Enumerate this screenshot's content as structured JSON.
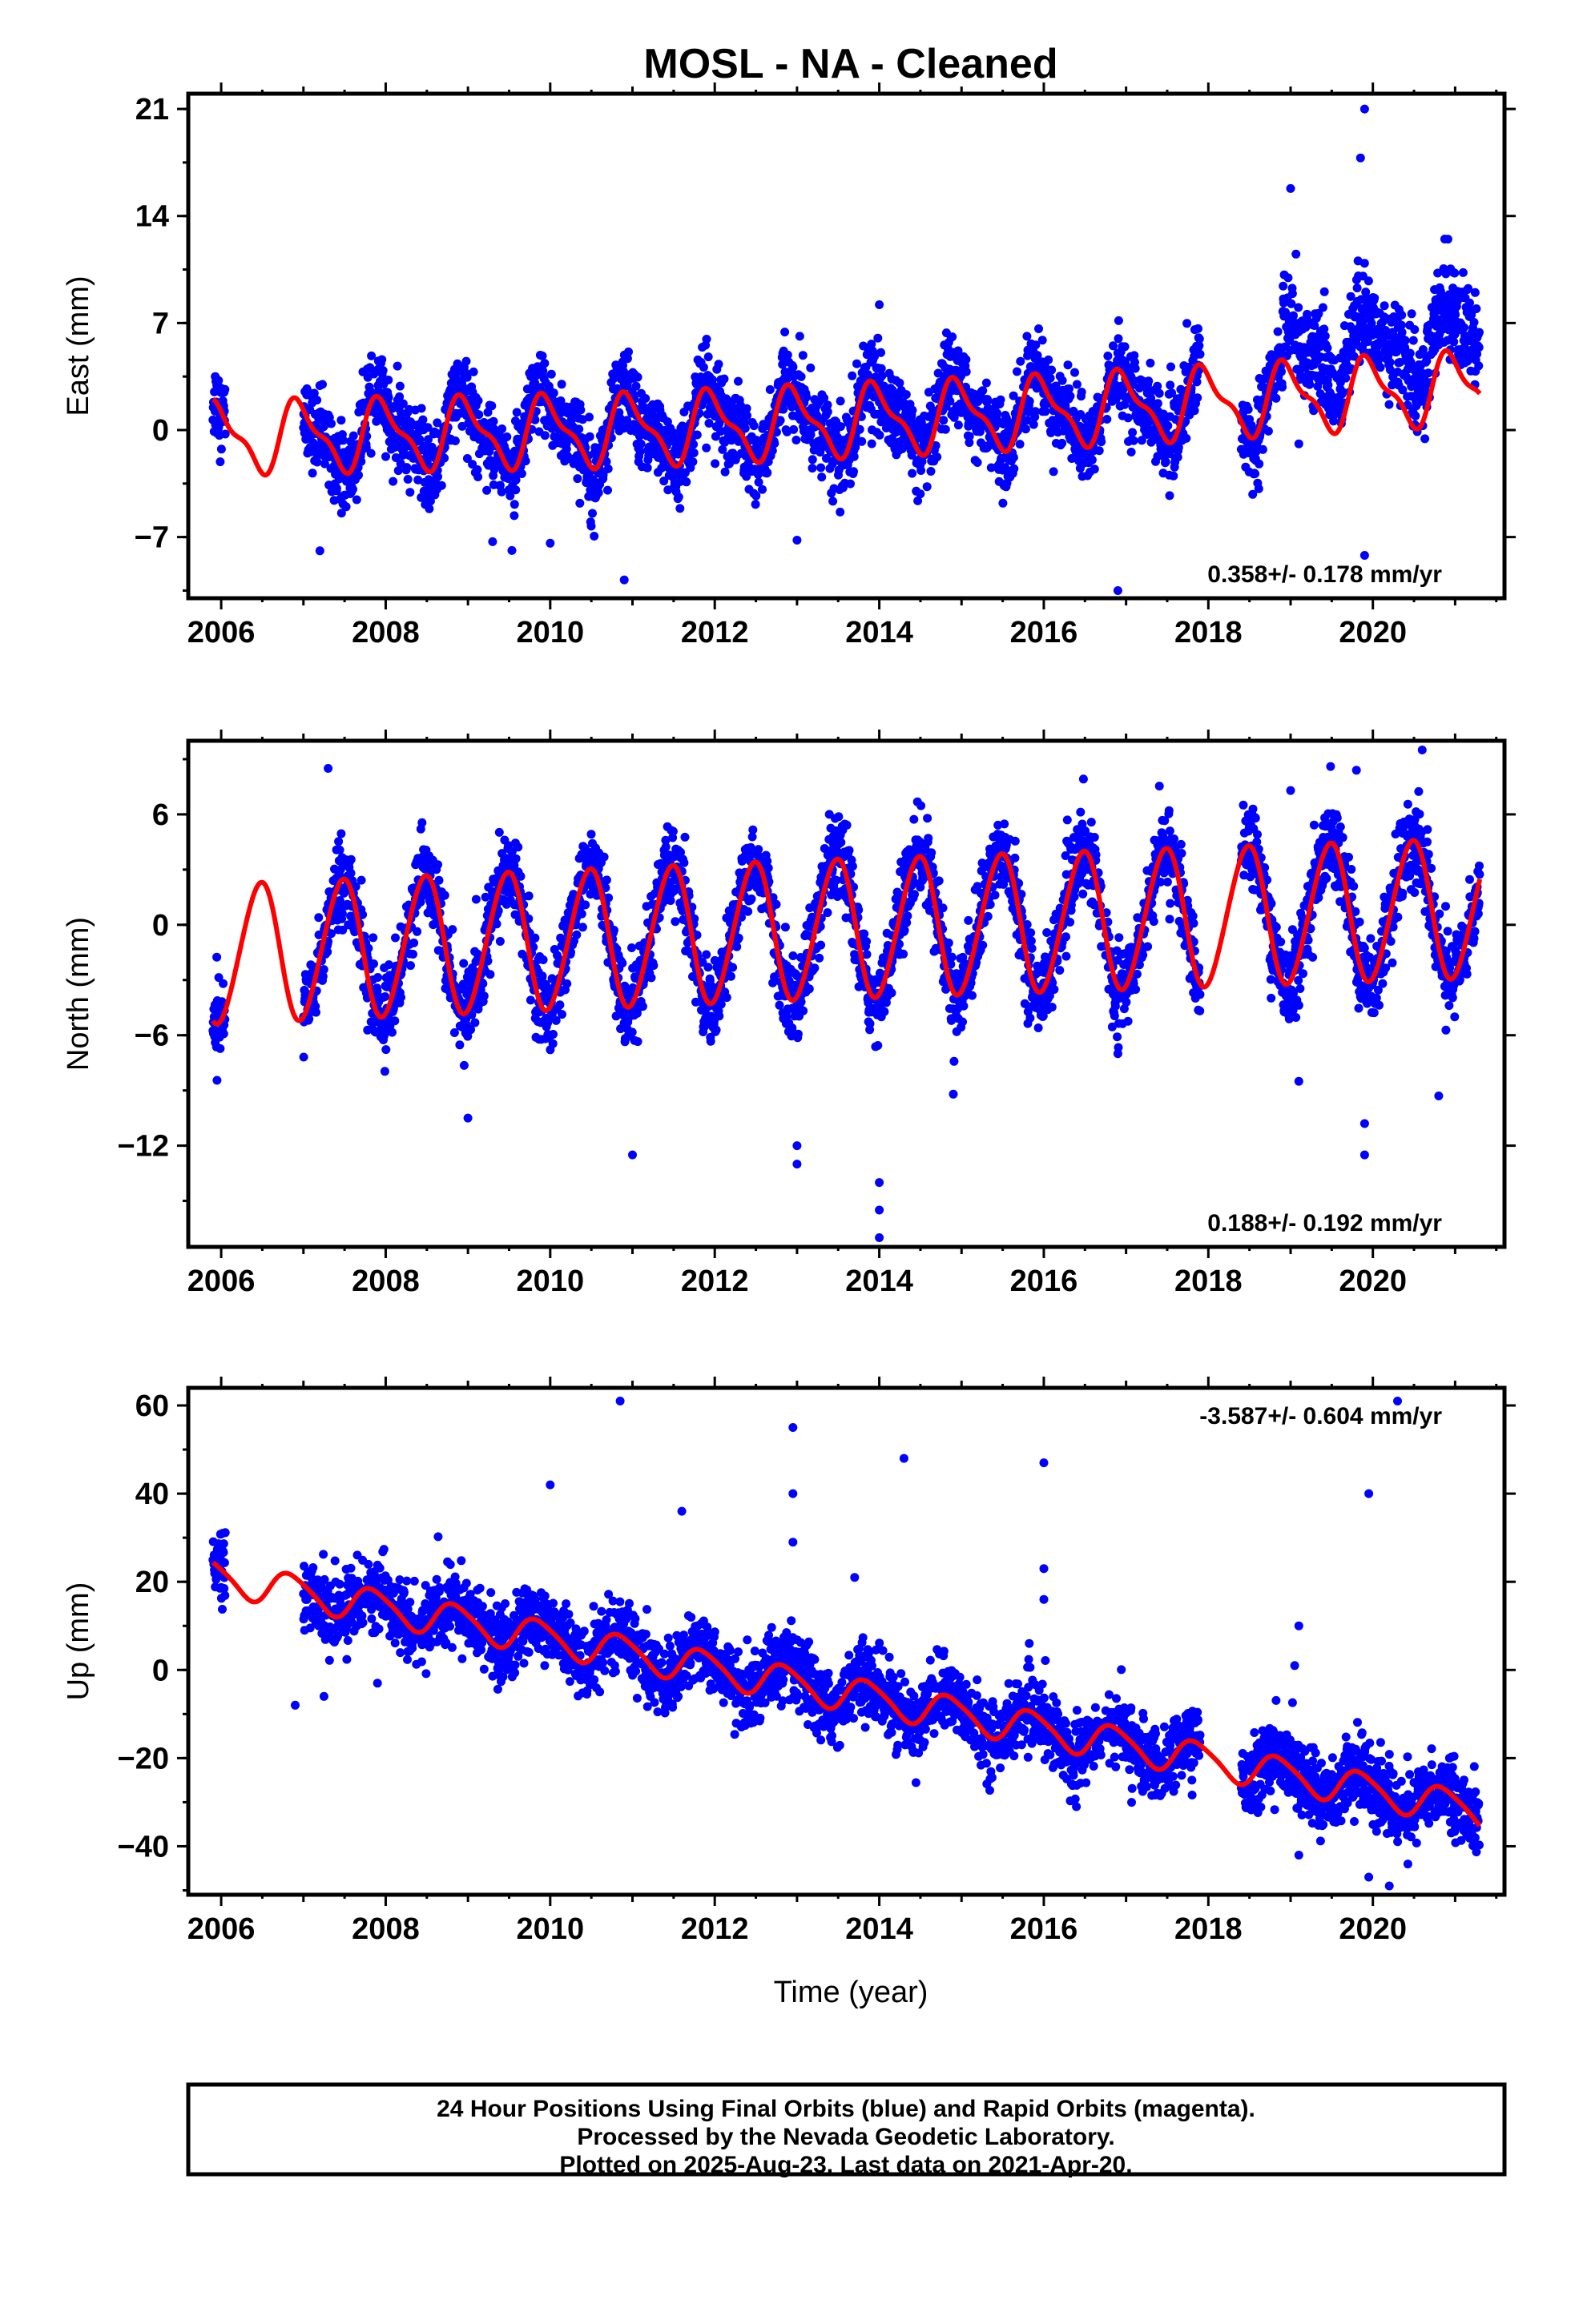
{
  "title": "MOSL  - NA - Cleaned",
  "x_axis_label": "Time (year)",
  "footer": {
    "lines": [
      "24 Hour Positions Using Final Orbits (blue) and Rapid Orbits (magenta).",
      "Processed by the Nevada Geodetic Laboratory.",
      "Plotted on 2025-Aug-23. Last data on 2021-Apr-20."
    ]
  },
  "colors": {
    "observations": "#0000ff",
    "model": "#ff0000",
    "frame": "#000000"
  },
  "chart_data": [
    {
      "type": "scatter",
      "component": "east",
      "ylabel": "East (mm)",
      "xlim": [
        2005.6,
        2021.6
      ],
      "ylim": [
        -11,
        22
      ],
      "xticks": [
        2006,
        2008,
        2010,
        2012,
        2014,
        2016,
        2018,
        2020
      ],
      "yticks": [
        -7,
        0,
        7,
        14,
        21
      ],
      "rate_text": "0.358+/- 0.178 mm/yr",
      "rate_position": "bottom-right",
      "data_spans": [
        [
          2005.9,
          2006.05
        ],
        [
          2007.0,
          2016.7
        ],
        [
          2016.75,
          2017.9
        ],
        [
          2018.4,
          2021.3
        ]
      ],
      "model": {
        "name": "model fit",
        "t_start": 2005.9,
        "t_end": 2021.3,
        "annual_sin": -0.5,
        "annual_cos": 2.05,
        "semiannual_sin": -0.7,
        "semiannual_cos": -0.35,
        "knots": [
          [
            2005.9,
            -0.5
          ],
          [
            2011.0,
            0.0
          ],
          [
            2016.0,
            1.2
          ],
          [
            2021.3,
            2.8
          ]
        ]
      },
      "noise_sd": 1.3,
      "offsets": [
        {
          "from": 2018.9,
          "to": 2021.3,
          "shift": 3.2
        }
      ],
      "outliers": [
        [
          2016.9,
          -10.5
        ],
        [
          2019.9,
          -8.2
        ],
        [
          2010.9,
          -9.8
        ],
        [
          2019.9,
          21.0
        ],
        [
          2019.0,
          15.8
        ],
        [
          2019.85,
          17.8
        ],
        [
          2014.0,
          8.2
        ],
        [
          2007.2,
          -7.9
        ],
        [
          2009.3,
          -7.3
        ],
        [
          2010.0,
          -7.4
        ],
        [
          2013.0,
          -7.2
        ],
        [
          2019.1,
          -0.9
        ]
      ]
    },
    {
      "type": "scatter",
      "component": "north",
      "ylabel": "North (mm)",
      "xlim": [
        2005.6,
        2021.6
      ],
      "ylim": [
        -17.5,
        10
      ],
      "xticks": [
        2006,
        2008,
        2010,
        2012,
        2014,
        2016,
        2018,
        2020
      ],
      "yticks": [
        -12,
        -6,
        0,
        6
      ],
      "rate_text": "0.188+/- 0.192 mm/yr",
      "rate_position": "bottom-right",
      "data_spans": [
        [
          2005.9,
          2006.05
        ],
        [
          2007.0,
          2016.7
        ],
        [
          2016.75,
          2017.9
        ],
        [
          2018.4,
          2021.3
        ]
      ],
      "model": {
        "name": "model fit",
        "t_start": 2005.9,
        "t_end": 2021.3,
        "annual_sin": 0.7,
        "annual_cos": -3.7,
        "semiannual_sin": 0.25,
        "semiannual_cos": 0.1,
        "knots": [
          [
            2005.9,
            -1.6
          ],
          [
            2013.0,
            -0.3
          ],
          [
            2021.3,
            0.9
          ]
        ]
      },
      "noise_sd": 1.1,
      "offsets": [],
      "outliers": [
        [
          2014.0,
          -17.0
        ],
        [
          2014.0,
          -15.5
        ],
        [
          2014.0,
          -14.0
        ],
        [
          2013.0,
          -13.0
        ],
        [
          2013.0,
          -12.0
        ],
        [
          2011.0,
          -12.5
        ],
        [
          2009.0,
          -10.5
        ],
        [
          2019.9,
          -12.5
        ],
        [
          2019.9,
          -10.8
        ],
        [
          2020.6,
          9.5
        ],
        [
          2007.3,
          8.5
        ],
        [
          2019.8,
          8.4
        ],
        [
          2020.8,
          -9.3
        ],
        [
          2016.9,
          -7.0
        ],
        [
          2019.1,
          -8.5
        ],
        [
          2014.9,
          -9.2
        ],
        [
          2019.0,
          7.3
        ]
      ]
    },
    {
      "type": "scatter",
      "component": "up",
      "ylabel": "Up (mm)",
      "xlim": [
        2005.6,
        2021.6
      ],
      "ylim": [
        -51,
        64
      ],
      "xticks": [
        2006,
        2008,
        2010,
        2012,
        2014,
        2016,
        2018,
        2020
      ],
      "yticks": [
        -40,
        -20,
        0,
        20,
        40,
        60
      ],
      "rate_text": "-3.587+/- 0.604 mm/yr",
      "rate_position": "top-right",
      "data_spans": [
        [
          2005.9,
          2006.05
        ],
        [
          2007.0,
          2016.7
        ],
        [
          2016.75,
          2017.9
        ],
        [
          2018.4,
          2021.3
        ]
      ],
      "model": {
        "name": "model fit",
        "t_start": 2005.9,
        "t_end": 2021.3,
        "annual_sin": -3.0,
        "annual_cos": 2.3,
        "semiannual_sin": 0.4,
        "semiannual_cos": -0.5,
        "knots": [
          [
            2005.9,
            21.3
          ],
          [
            2021.3,
            -31.9
          ]
        ]
      },
      "noise_sd": 4.0,
      "offsets": [],
      "outliers": [
        [
          2010.85,
          61.0
        ],
        [
          2012.95,
          55.0
        ],
        [
          2014.3,
          48.0
        ],
        [
          2016.0,
          47.0
        ],
        [
          2020.3,
          61.0
        ],
        [
          2019.95,
          40.0
        ],
        [
          2010.0,
          42.0
        ],
        [
          2012.95,
          40.0
        ],
        [
          2011.6,
          36.0
        ],
        [
          2016.0,
          23.0
        ],
        [
          2019.1,
          10.0
        ],
        [
          2019.05,
          1.0
        ],
        [
          2020.2,
          -49.0
        ],
        [
          2019.95,
          -47.0
        ],
        [
          2019.1,
          -42.0
        ],
        [
          2016.0,
          16.0
        ],
        [
          2012.95,
          29.0
        ],
        [
          2013.7,
          21.0
        ],
        [
          2006.9,
          -8.0
        ],
        [
          2007.25,
          -6.0
        ],
        [
          2007.9,
          -3.0
        ]
      ]
    }
  ]
}
